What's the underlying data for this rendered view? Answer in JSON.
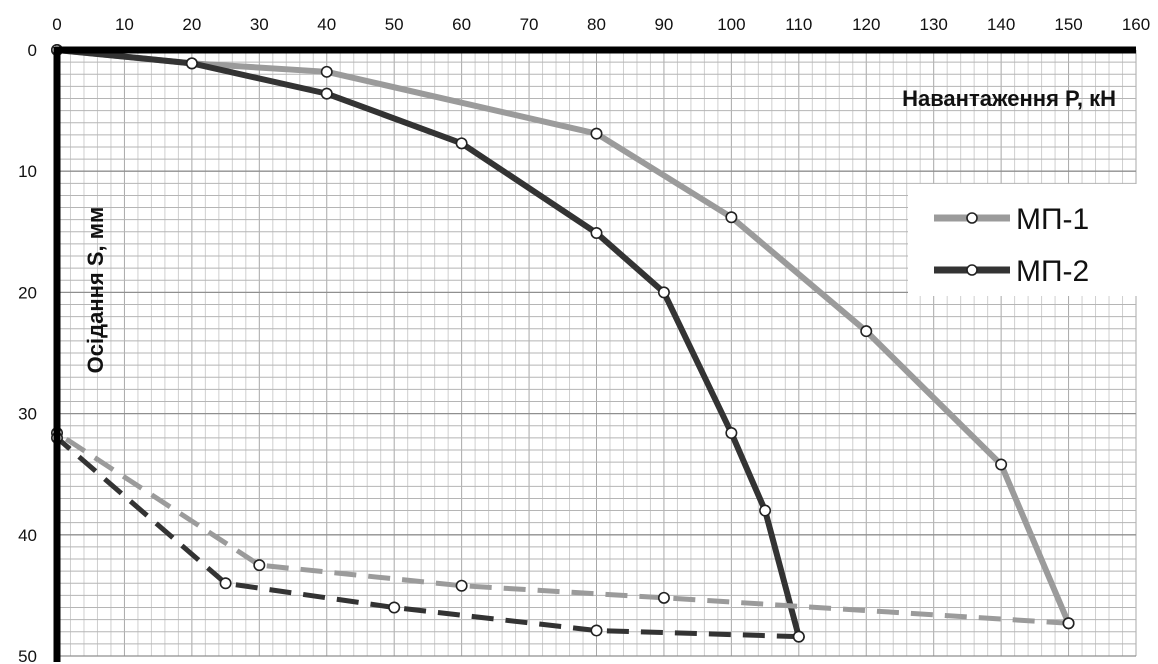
{
  "chart_data": {
    "type": "line",
    "xlabel": "Навантаження P, кН",
    "ylabel": "Осідання S, мм",
    "xlim": [
      0,
      160
    ],
    "ylim": [
      0,
      50
    ],
    "y_inverted": true,
    "x_axis_position": "top",
    "x_ticks": [
      "0",
      "10",
      "20",
      "30",
      "40",
      "50",
      "60",
      "70",
      "80",
      "90",
      "100",
      "110",
      "120",
      "130",
      "140",
      "150",
      "160"
    ],
    "y_ticks": [
      "0",
      "10",
      "20",
      "30",
      "40",
      "50"
    ],
    "grid": true,
    "legend_position": "right",
    "colors": {
      "MP1": "#9b9b9b",
      "MP2": "#333333"
    },
    "series": [
      {
        "name": "МП-1",
        "legend": true,
        "style": "solid",
        "color": "#9b9b9b",
        "points": [
          [
            0,
            0
          ],
          [
            20,
            1.1
          ],
          [
            40,
            1.8
          ],
          [
            80,
            6.9
          ],
          [
            100,
            13.8
          ],
          [
            120,
            23.2
          ],
          [
            140,
            34.2
          ],
          [
            150,
            47.3
          ]
        ]
      },
      {
        "name": "МП-2",
        "legend": true,
        "style": "solid",
        "color": "#333333",
        "points": [
          [
            0,
            0
          ],
          [
            20,
            1.1
          ],
          [
            40,
            3.6
          ],
          [
            60,
            7.7
          ],
          [
            80,
            15.1
          ],
          [
            90,
            20.0
          ],
          [
            100,
            31.6
          ],
          [
            105,
            38.0
          ],
          [
            110,
            48.4
          ]
        ]
      },
      {
        "name": "",
        "legend": false,
        "style": "dashed",
        "color": "#9b9b9b",
        "points": [
          [
            150,
            47.3
          ],
          [
            90,
            45.2
          ],
          [
            60,
            44.2
          ],
          [
            30,
            42.5
          ],
          [
            0,
            31.6
          ]
        ]
      },
      {
        "name": "",
        "legend": false,
        "style": "dashed",
        "color": "#333333",
        "points": [
          [
            110,
            48.4
          ],
          [
            80,
            47.9
          ],
          [
            50,
            46.0
          ],
          [
            25,
            44.0
          ],
          [
            0,
            32.0
          ]
        ]
      }
    ]
  }
}
